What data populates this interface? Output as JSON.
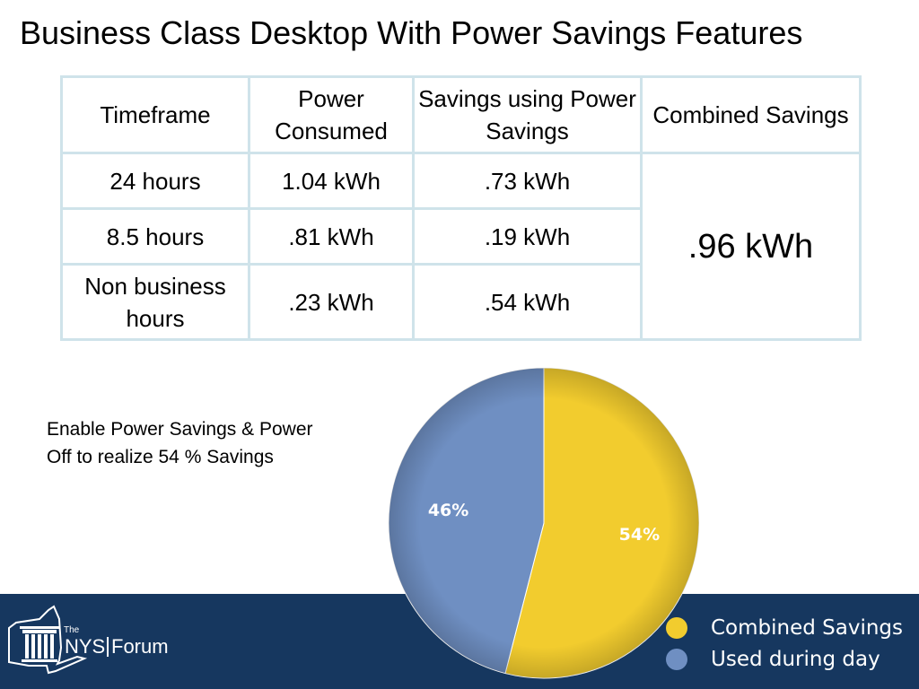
{
  "title": "Business Class Desktop With Power Savings Features",
  "table": {
    "headers": [
      "Timeframe",
      "Power Consumed",
      "Savings using Power Savings",
      "Combined Savings"
    ],
    "rows": [
      {
        "timeframe": "24 hours",
        "consumed": "1.04 kWh",
        "savings": ".73 kWh"
      },
      {
        "timeframe": "8.5 hours",
        "consumed": ".81 kWh",
        "savings": ".19 kWh"
      },
      {
        "timeframe": "Non business hours",
        "consumed": ".23 kWh",
        "savings": ".54 kWh"
      }
    ],
    "combined": ".96 kWh"
  },
  "note": "Enable Power Savings & Power Off to realize 54 % Savings",
  "logo": {
    "the": "The",
    "nys": "NYS",
    "forum": "Forum"
  },
  "colors": {
    "combined": "#f2cc2e",
    "used": "#6f8fc2",
    "footer": "#16375f",
    "table_border": "#cfe3ea"
  },
  "chart_data": {
    "type": "pie",
    "title": "",
    "slices": [
      {
        "name": "Combined Savings",
        "value": 54,
        "label": "54%",
        "color": "#f2cc2e"
      },
      {
        "name": "Used during day",
        "value": 46,
        "label": "46%",
        "color": "#6f8fc2"
      }
    ],
    "start": "top",
    "direction": "clockwise",
    "legend": {
      "placement": "bottom-right",
      "entries": [
        "Combined Savings",
        "Used during day"
      ]
    }
  }
}
